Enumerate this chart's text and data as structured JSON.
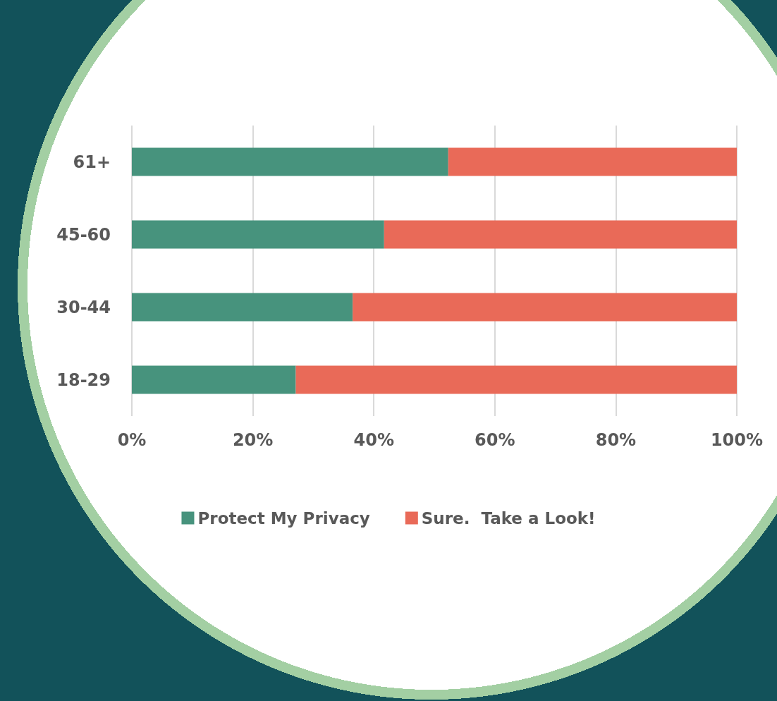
{
  "chart_data": {
    "type": "bar",
    "orientation": "horizontal",
    "stacked": true,
    "categories": [
      "61+",
      "45-60",
      "30-44",
      "18-29"
    ],
    "series": [
      {
        "name": "Protect My Privacy",
        "color": "#47937d",
        "values": [
          52.3,
          41.7,
          36.5,
          27.1
        ]
      },
      {
        "name": "Sure.  Take a Look!",
        "color": "#e96a58",
        "values": [
          47.7,
          58.3,
          63.5,
          72.9
        ]
      }
    ],
    "xlim": [
      0,
      100
    ],
    "xticks": [
      {
        "value": 0,
        "label": "0%"
      },
      {
        "value": 20,
        "label": "20%"
      },
      {
        "value": 40,
        "label": "40%"
      },
      {
        "value": 60,
        "label": "60%"
      },
      {
        "value": 80,
        "label": "80%"
      },
      {
        "value": 100,
        "label": "100%"
      }
    ],
    "grid": "x",
    "legend": "bottom"
  }
}
